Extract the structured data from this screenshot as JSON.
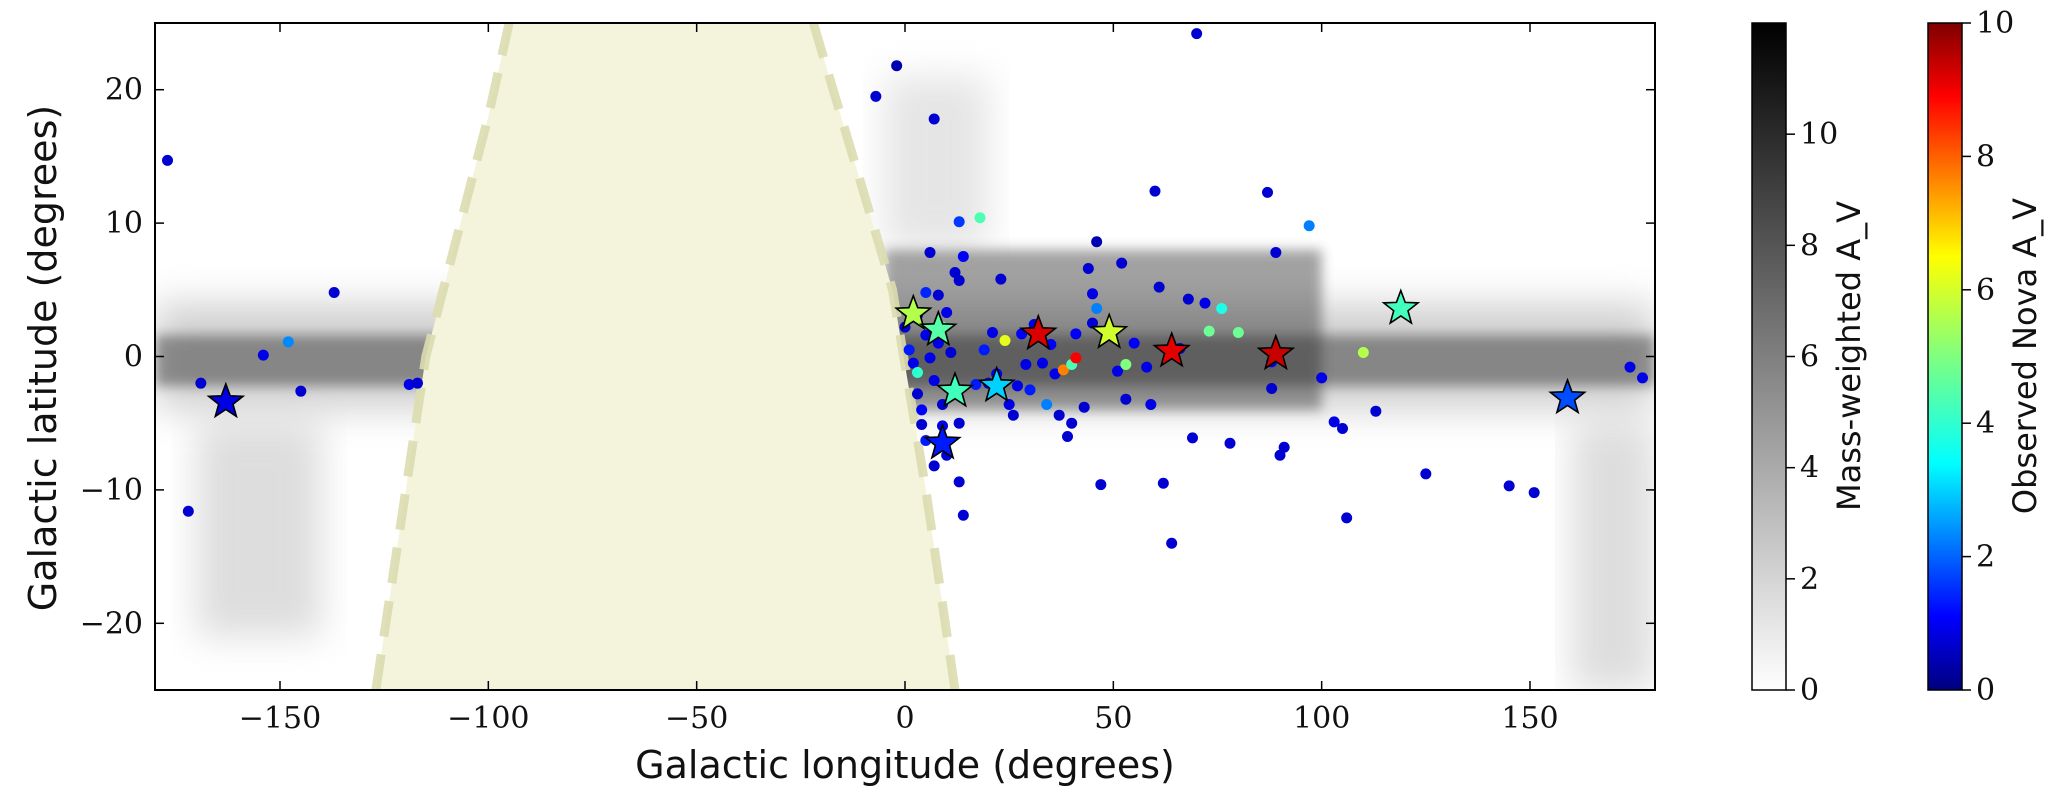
{
  "chart_data": {
    "type": "scatter",
    "xlabel": "Galactic longitude (degrees)",
    "ylabel": "Galactic latitude (degrees)",
    "xlim": [
      -180,
      180
    ],
    "ylim": [
      -25,
      25
    ],
    "xticks": [
      -150,
      -100,
      -50,
      0,
      50,
      100,
      150
    ],
    "yticks": [
      -20,
      -10,
      0,
      10,
      20
    ],
    "xtick_labels": [
      "−150",
      "−100",
      "−50",
      "0",
      "50",
      "100",
      "150"
    ],
    "ytick_labels": [
      "−20",
      "−10",
      "0",
      "10",
      "20"
    ],
    "background_map": "grayscale Milky Way extinction map (Mass-weighted A_V), concentrated along latitude 0",
    "excluded_region": {
      "color": "#f4f4dd",
      "boundary_color": "#dcdcb0",
      "boundary_style": "dashed",
      "top_edge_l": [
        -95,
        -22
      ],
      "bottom_edge_l": [
        -127,
        12
      ]
    },
    "colorbars": [
      {
        "label": "Mass-weighted A_V",
        "colormap": "Greys",
        "range": [
          0,
          12
        ],
        "ticks": [
          0,
          2,
          4,
          6,
          8,
          10
        ],
        "tick_labels": [
          "0",
          "2",
          "4",
          "6",
          "8",
          "10"
        ]
      },
      {
        "label": "Observed Nova A_V",
        "colormap": "jet",
        "range": [
          0,
          10
        ],
        "ticks": [
          0,
          2,
          4,
          6,
          8,
          10
        ],
        "tick_labels": [
          "0",
          "2",
          "4",
          "6",
          "8",
          "10"
        ]
      }
    ],
    "series": [
      {
        "marker": "circle",
        "points": [
          [
            -177,
            14.7,
            0.8
          ],
          [
            -172,
            -11.6,
            0.8
          ],
          [
            -169,
            -2.0,
            0.8
          ],
          [
            -154,
            0.1,
            1.0
          ],
          [
            -148,
            1.1,
            2.6
          ],
          [
            -145,
            -2.6,
            0.8
          ],
          [
            -137,
            4.8,
            0.8
          ],
          [
            -119,
            -2.1,
            1.0
          ],
          [
            -117,
            -2.0,
            0.8
          ],
          [
            -7,
            19.5,
            0.8
          ],
          [
            -2,
            21.8,
            0.5
          ],
          [
            0,
            2.2,
            0.8
          ],
          [
            1,
            0.5,
            1.5
          ],
          [
            2,
            -0.5,
            1.0
          ],
          [
            3,
            -1.2,
            4.2
          ],
          [
            3,
            3.1,
            0.8
          ],
          [
            3,
            -2.8,
            0.8
          ],
          [
            4,
            -4.0,
            1.2
          ],
          [
            4,
            -5.1,
            0.8
          ],
          [
            5,
            1.6,
            1.0
          ],
          [
            5,
            -6.3,
            1.5
          ],
          [
            5,
            4.8,
            1.6
          ],
          [
            6,
            7.8,
            0.8
          ],
          [
            6,
            -0.1,
            1.0
          ],
          [
            7,
            17.8,
            0.8
          ],
          [
            7,
            -8.2,
            0.8
          ],
          [
            7,
            -1.8,
            1.0
          ],
          [
            8,
            1.0,
            1.0
          ],
          [
            8,
            4.6,
            0.8
          ],
          [
            9,
            2.2,
            4.4
          ],
          [
            9,
            -3.6,
            0.8
          ],
          [
            9,
            -5.2,
            1.0
          ],
          [
            10,
            -7.4,
            0.8
          ],
          [
            10,
            3.3,
            1.0
          ],
          [
            11,
            0.3,
            0.8
          ],
          [
            12,
            -2.5,
            1.0
          ],
          [
            12,
            6.3,
            0.8
          ],
          [
            13,
            10.1,
            1.8
          ],
          [
            13,
            5.7,
            0.8
          ],
          [
            13,
            -5.0,
            0.8
          ],
          [
            13,
            -9.4,
            0.8
          ],
          [
            14,
            -11.9,
            0.8
          ],
          [
            14,
            7.5,
            1.2
          ],
          [
            17,
            -2.1,
            1.5
          ],
          [
            18,
            10.4,
            4.5
          ],
          [
            19,
            0.5,
            1.5
          ],
          [
            20,
            -2.0,
            1.0
          ],
          [
            21,
            1.8,
            1.0
          ],
          [
            22,
            -1.3,
            1.2
          ],
          [
            23,
            5.8,
            0.8
          ],
          [
            24,
            1.2,
            6.0
          ],
          [
            25,
            -3.6,
            1.0
          ],
          [
            26,
            -4.4,
            0.8
          ],
          [
            27,
            -2.2,
            1.0
          ],
          [
            28,
            1.7,
            1.2
          ],
          [
            29,
            -0.6,
            1.0
          ],
          [
            30,
            -2.5,
            1.5
          ],
          [
            31,
            2.4,
            1.0
          ],
          [
            33,
            -0.5,
            1.0
          ],
          [
            34,
            -3.6,
            2.5
          ],
          [
            35,
            0.9,
            1.2
          ],
          [
            36,
            -1.3,
            1.0
          ],
          [
            37,
            -4.4,
            0.8
          ],
          [
            38,
            -1.0,
            7.5
          ],
          [
            39,
            -6.0,
            0.8
          ],
          [
            40,
            -5.0,
            0.8
          ],
          [
            40,
            -0.6,
            4.5
          ],
          [
            41,
            -0.1,
            8.8
          ],
          [
            41,
            1.7,
            1.2
          ],
          [
            43,
            -3.8,
            0.8
          ],
          [
            44,
            6.6,
            0.8
          ],
          [
            45,
            2.5,
            0.8
          ],
          [
            45,
            4.7,
            1.0
          ],
          [
            46,
            3.6,
            2.5
          ],
          [
            46,
            8.6,
            0.5
          ],
          [
            47,
            -9.6,
            0.8
          ],
          [
            51,
            -1.1,
            1.0
          ],
          [
            52,
            7.0,
            0.8
          ],
          [
            53,
            -0.6,
            5.0
          ],
          [
            53,
            -3.2,
            0.8
          ],
          [
            55,
            1.0,
            1.2
          ],
          [
            58,
            -0.8,
            1.0
          ],
          [
            59,
            -3.6,
            1.0
          ],
          [
            60,
            12.4,
            0.8
          ],
          [
            61,
            5.2,
            0.8
          ],
          [
            62,
            -9.5,
            0.8
          ],
          [
            64,
            -14.0,
            0.8
          ],
          [
            66,
            0.6,
            1.0
          ],
          [
            68,
            4.3,
            0.8
          ],
          [
            69,
            -6.1,
            0.8
          ],
          [
            70,
            24.2,
            0.8
          ],
          [
            72,
            4.0,
            1.0
          ],
          [
            73,
            1.9,
            4.8
          ],
          [
            76,
            3.6,
            4.0
          ],
          [
            78,
            -6.5,
            0.8
          ],
          [
            80,
            1.8,
            4.8
          ],
          [
            87,
            12.3,
            0.8
          ],
          [
            88,
            -2.4,
            0.8
          ],
          [
            88,
            -0.4,
            1.0
          ],
          [
            89,
            7.8,
            0.8
          ],
          [
            90,
            -7.4,
            0.8
          ],
          [
            91,
            -6.8,
            0.8
          ],
          [
            97,
            9.8,
            2.5
          ],
          [
            100,
            -1.6,
            1.0
          ],
          [
            103,
            -4.9,
            1.0
          ],
          [
            105,
            -5.4,
            0.8
          ],
          [
            106,
            -12.1,
            0.8
          ],
          [
            110,
            0.3,
            5.5
          ],
          [
            113,
            -4.1,
            0.8
          ],
          [
            125,
            -8.8,
            0.8
          ],
          [
            145,
            -9.7,
            0.8
          ],
          [
            151,
            -10.2,
            0.8
          ],
          [
            174,
            -0.8,
            1.0
          ],
          [
            177,
            -1.6,
            1.0
          ]
        ]
      },
      {
        "marker": "star",
        "points": [
          [
            -163,
            -3.4,
            1.0
          ],
          [
            2,
            3.2,
            5.5
          ],
          [
            8,
            2.0,
            4.6
          ],
          [
            9,
            -6.5,
            1.5
          ],
          [
            12,
            -2.6,
            4.4
          ],
          [
            22,
            -2.2,
            3.3
          ],
          [
            32,
            1.7,
            9.1
          ],
          [
            49,
            1.8,
            5.8
          ],
          [
            64,
            0.4,
            9.0
          ],
          [
            89,
            0.2,
            9.3
          ],
          [
            119,
            3.6,
            4.4
          ],
          [
            159,
            -3.1,
            2.0
          ]
        ]
      }
    ]
  }
}
